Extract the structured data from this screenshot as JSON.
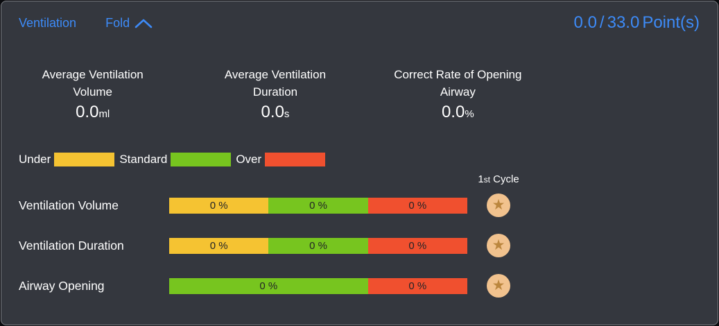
{
  "panel": {
    "title": "Ventilation",
    "fold_label": "Fold",
    "score": {
      "current": "0.0",
      "separator": "/",
      "total": "33.0",
      "unit": "Point(s)"
    }
  },
  "colors": {
    "accent_blue": "#3D8BF8",
    "panel_bg": "#34373E",
    "under": "#F5C332",
    "standard": "#77C51F",
    "over": "#F0502F",
    "star_circle": "#F1C28E",
    "star": "#BB863E"
  },
  "stats": [
    {
      "title_line1": "Average Ventilation",
      "title_line2": "Volume",
      "value": "0.0",
      "unit": "ml"
    },
    {
      "title_line1": "Average Ventilation",
      "title_line2": "Duration",
      "value": "0.0",
      "unit": "s"
    },
    {
      "title_line1": "Correct Rate of Opening",
      "title_line2": "Airway",
      "value": "0.0",
      "unit": "%"
    }
  ],
  "legend": [
    {
      "label": "Under",
      "key": "under"
    },
    {
      "label": "Standard",
      "key": "standard"
    },
    {
      "label": "Over",
      "key": "over"
    }
  ],
  "cycle_header": {
    "prefix": "1",
    "ordinal": "st",
    "label": "Cycle"
  },
  "rows": [
    {
      "label": "Ventilation Volume",
      "segments": [
        {
          "key": "under",
          "value": "0 %",
          "flex": 1
        },
        {
          "key": "standard",
          "value": "0 %",
          "flex": 1
        },
        {
          "key": "over",
          "value": "0 %",
          "flex": 1
        }
      ]
    },
    {
      "label": "Ventilation Duration",
      "segments": [
        {
          "key": "under",
          "value": "0 %",
          "flex": 1
        },
        {
          "key": "standard",
          "value": "0 %",
          "flex": 1
        },
        {
          "key": "over",
          "value": "0 %",
          "flex": 1
        }
      ]
    },
    {
      "label": "Airway Opening",
      "segments": [
        {
          "key": "standard",
          "value": "0 %",
          "flex": 2
        },
        {
          "key": "over",
          "value": "0 %",
          "flex": 1
        }
      ]
    }
  ]
}
